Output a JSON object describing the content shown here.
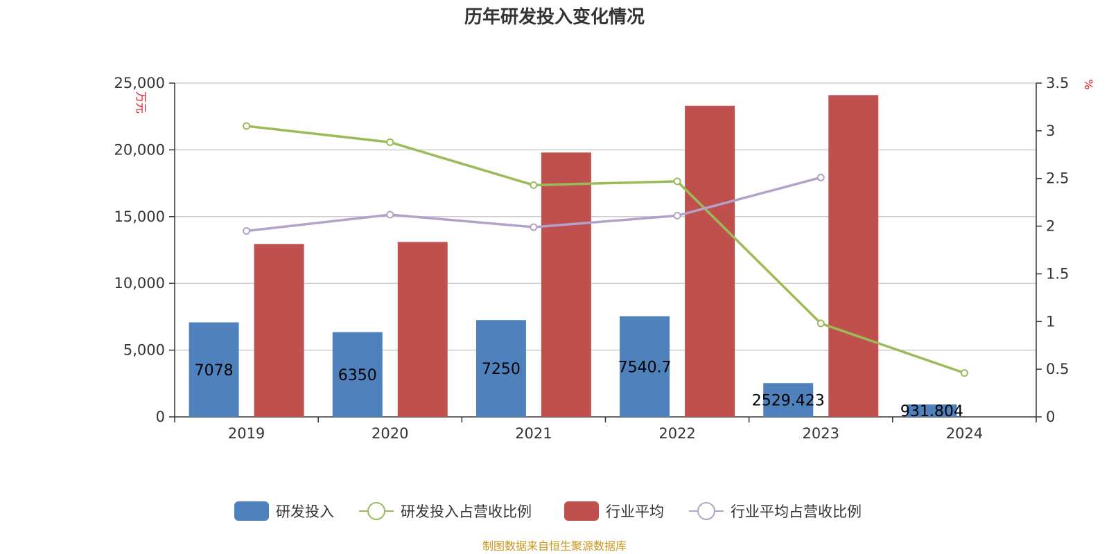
{
  "chart_data": {
    "type": "bar",
    "title": "历年研发投入变化情况",
    "categories": [
      "2019",
      "2020",
      "2021",
      "2022",
      "2023",
      "2024"
    ],
    "y_left": {
      "label": "万元",
      "ylim": [
        0,
        25000
      ],
      "ticks": [
        "0",
        "5,000",
        "10,000",
        "15,000",
        "20,000",
        "25,000"
      ]
    },
    "y_right": {
      "label": "%",
      "ylim": [
        0,
        3.5
      ],
      "ticks": [
        "0",
        "0.5",
        "1",
        "1.5",
        "2",
        "2.5",
        "3",
        "3.5"
      ]
    },
    "series": [
      {
        "name": "研发投入",
        "type": "bar",
        "axis": "left",
        "color": "#4f81bd",
        "values": [
          7078,
          6350,
          7250,
          7540.7,
          2529.423,
          931.804
        ],
        "labels": [
          "7078",
          "6350",
          "7250",
          "7540.7",
          "2529.423",
          "931.804"
        ]
      },
      {
        "name": "研发投入占营收比例",
        "type": "line",
        "axis": "right",
        "color": "#9bbb59",
        "values": [
          3.05,
          2.88,
          2.43,
          2.47,
          0.98,
          0.46
        ]
      },
      {
        "name": "行业平均",
        "type": "bar",
        "axis": "left",
        "color": "#c0504d",
        "values": [
          12950,
          13100,
          19800,
          23300,
          24100,
          null
        ]
      },
      {
        "name": "行业平均占营收比例",
        "type": "line",
        "axis": "right",
        "color": "#b3a2c7",
        "values": [
          1.95,
          2.12,
          1.99,
          2.11,
          2.51,
          null
        ]
      }
    ],
    "grid": true,
    "legend": "bottom"
  },
  "source_note": "制图数据来自恒生聚源数据库"
}
